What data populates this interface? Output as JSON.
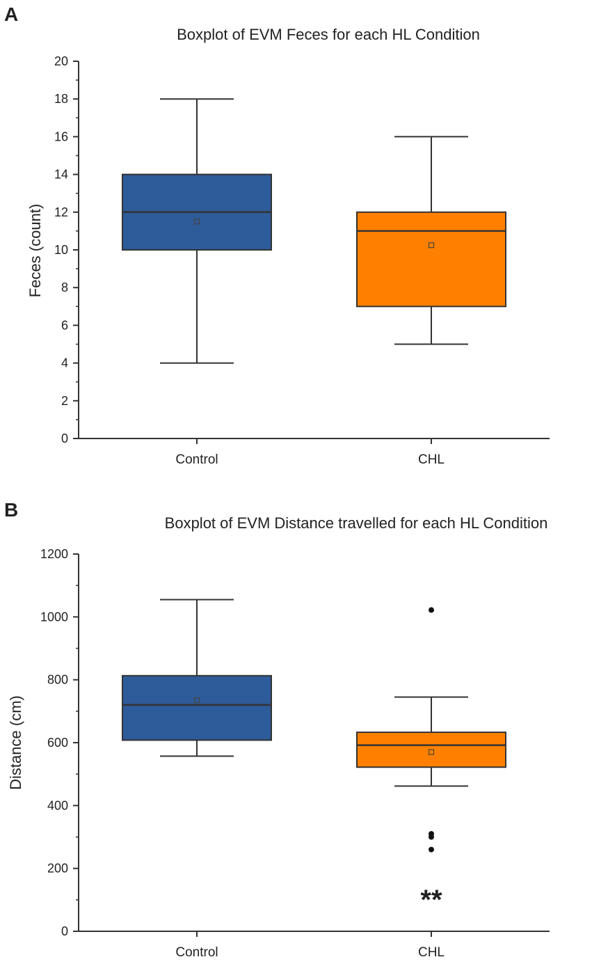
{
  "chart_data": [
    {
      "panel": "A",
      "type": "boxplot",
      "title": "Boxplot of EVM Feces for each HL Condition",
      "xlabel": "",
      "ylabel": "Feces (count)",
      "ylim": [
        0,
        20
      ],
      "yticks": [
        0,
        2,
        4,
        6,
        8,
        10,
        12,
        14,
        16,
        18,
        20
      ],
      "categories": [
        "Control",
        "CHL"
      ],
      "boxes": [
        {
          "name": "Control",
          "color": "#2e5b99",
          "whisker_low": 4,
          "q1": 10,
          "median": 12,
          "q3": 14,
          "whisker_high": 18,
          "mean": 11.5,
          "outliers": []
        },
        {
          "name": "CHL",
          "color": "#ff8000",
          "whisker_low": 5,
          "q1": 7,
          "median": 11,
          "q3": 12,
          "whisker_high": 16,
          "mean": 10.25,
          "outliers": []
        }
      ],
      "annotation": ""
    },
    {
      "panel": "B",
      "type": "boxplot",
      "title": "Boxplot of EVM Distance travelled for each HL Condition",
      "xlabel": "",
      "ylabel": "Distance (cm)",
      "ylim": [
        0,
        1200
      ],
      "yticks": [
        0,
        200,
        400,
        600,
        800,
        1000,
        1200
      ],
      "categories": [
        "Control",
        "CHL"
      ],
      "boxes": [
        {
          "name": "Control",
          "color": "#2e5b99",
          "whisker_low": 557,
          "q1": 608,
          "median": 720,
          "q3": 813,
          "whisker_high": 1055,
          "mean": 735,
          "outliers": []
        },
        {
          "name": "CHL",
          "color": "#ff8000",
          "whisker_low": 462,
          "q1": 522,
          "median": 592,
          "q3": 633,
          "whisker_high": 745,
          "mean": 570,
          "outliers": [
            1022,
            310,
            300,
            260
          ]
        }
      ],
      "annotation": "**"
    }
  ]
}
